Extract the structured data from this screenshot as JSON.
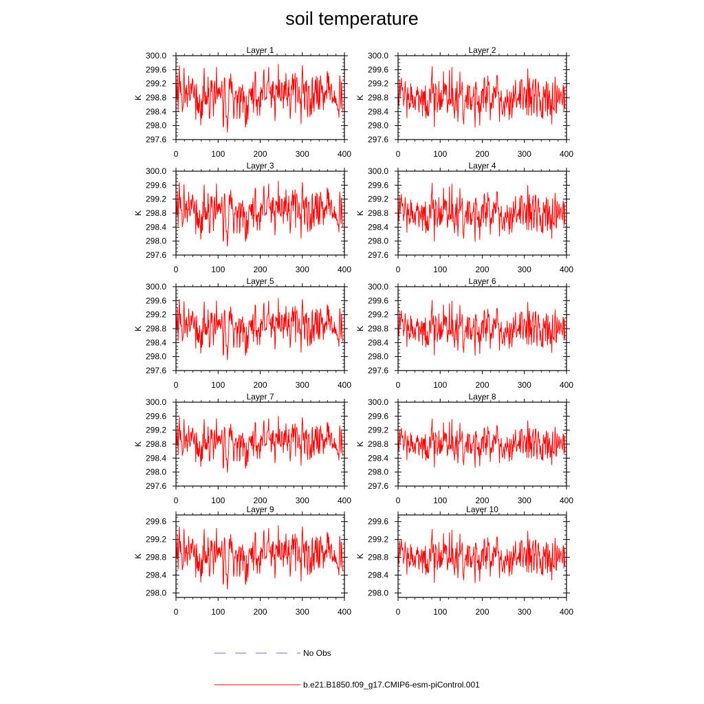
{
  "chart_data": {
    "type": "line",
    "title": "soil temperature",
    "xlabel": "",
    "ylabel": "K",
    "xlim": [
      0,
      400
    ],
    "x_ticks": [
      0,
      100,
      200,
      300,
      400
    ],
    "series_style": {
      "model_color": "#ff0000",
      "obs_color": "#6a6ad0"
    },
    "legend": {
      "placement": "bottom",
      "entries": [
        {
          "name": "No Obs",
          "style": "dashed",
          "color": "#6a6ad0"
        },
        {
          "name": "b.e21.B1850.f09_g17.CMIP6-esm-piControl.001",
          "style": "solid",
          "color": "#ff0000"
        }
      ]
    },
    "panels": [
      {
        "title": "Layer 1",
        "ylabel": "K",
        "ylim": [
          297.6,
          300.0
        ],
        "yticks": [
          "300.0",
          "299.6",
          "299.2",
          "298.8",
          "298.4",
          "298.0",
          "297.6"
        ],
        "mean": 298.85,
        "amp": 0.75,
        "seed": 1
      },
      {
        "title": "Layer 2",
        "ylabel": "K",
        "ylim": [
          297.6,
          300.0
        ],
        "yticks": [
          "300.0",
          "299.6",
          "299.2",
          "298.8",
          "298.4",
          "298.0",
          "297.6"
        ],
        "mean": 298.85,
        "amp": 0.75,
        "seed": 2
      },
      {
        "title": "Layer 3",
        "ylabel": "K",
        "ylim": [
          297.6,
          300.0
        ],
        "yticks": [
          "300.0",
          "299.6",
          "299.2",
          "298.8",
          "298.4",
          "298.0",
          "297.6"
        ],
        "mean": 298.85,
        "amp": 0.72,
        "seed": 1
      },
      {
        "title": "Layer 4",
        "ylabel": "K",
        "ylim": [
          297.6,
          300.0
        ],
        "yticks": [
          "300.0",
          "299.6",
          "299.2",
          "298.8",
          "298.4",
          "298.0",
          "297.6"
        ],
        "mean": 298.85,
        "amp": 0.72,
        "seed": 2
      },
      {
        "title": "Layer 5",
        "ylabel": "K",
        "ylim": [
          297.6,
          300.0
        ],
        "yticks": [
          "300.0",
          "299.6",
          "299.2",
          "298.8",
          "298.4",
          "298.0",
          "297.6"
        ],
        "mean": 298.85,
        "amp": 0.68,
        "seed": 1
      },
      {
        "title": "Layer 6",
        "ylabel": "K",
        "ylim": [
          297.6,
          300.0
        ],
        "yticks": [
          "300.0",
          "299.6",
          "299.2",
          "298.8",
          "298.4",
          "298.0",
          "297.6"
        ],
        "mean": 298.85,
        "amp": 0.68,
        "seed": 2
      },
      {
        "title": "Layer 7",
        "ylabel": "K",
        "ylim": [
          297.6,
          300.0
        ],
        "yticks": [
          "300.0",
          "299.6",
          "299.2",
          "298.8",
          "298.4",
          "298.0",
          "297.6"
        ],
        "mean": 298.85,
        "amp": 0.62,
        "seed": 1
      },
      {
        "title": "Layer 8",
        "ylabel": "K",
        "ylim": [
          297.6,
          300.0
        ],
        "yticks": [
          "300.0",
          "299.6",
          "299.2",
          "298.8",
          "298.4",
          "298.0",
          "297.6"
        ],
        "mean": 298.85,
        "amp": 0.6,
        "seed": 2
      },
      {
        "title": "Layer 9",
        "ylabel": "K",
        "ylim": [
          297.9,
          299.75
        ],
        "yticks": [
          "299.6",
          "299.2",
          "298.8",
          "298.4",
          "298.0"
        ],
        "mean": 298.85,
        "amp": 0.55,
        "seed": 1
      },
      {
        "title": "Layer 10",
        "ylabel": "K",
        "ylim": [
          297.9,
          299.75
        ],
        "yticks": [
          "299.6",
          "299.2",
          "298.8",
          "298.4",
          "298.0"
        ],
        "mean": 298.85,
        "amp": 0.52,
        "seed": 2
      }
    ]
  }
}
